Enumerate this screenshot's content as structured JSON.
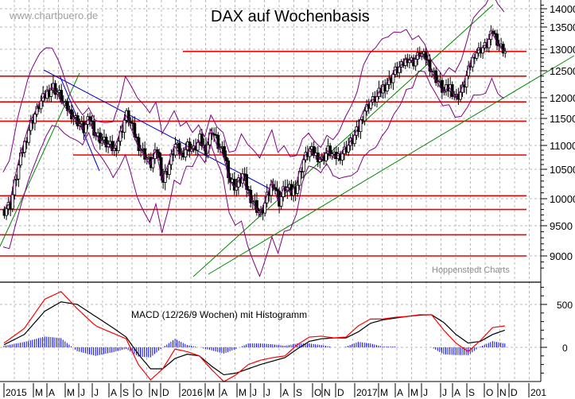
{
  "chart_data": [
    {
      "type": "candlestick",
      "title": "DAX auf Wochenbasis",
      "watermark": "www.chartbuero.de",
      "credit": "Hoppenstedt Charts",
      "xlabel": "",
      "ylabel": "",
      "ylim": [
        8700,
        14000
      ],
      "y_ticks": [
        9000,
        9500,
        10000,
        10500,
        11000,
        11500,
        12000,
        12500,
        13000,
        13500,
        14000
      ],
      "x_ticks": [
        "2015",
        "M",
        "A",
        "M",
        "J",
        "J",
        "A",
        "S",
        "O",
        "N",
        "D",
        "2016",
        "M",
        "A",
        "M",
        "J",
        "J",
        "A",
        "S",
        "O",
        "N",
        "D",
        "2017",
        "M",
        "A",
        "M",
        "J",
        "J",
        "A",
        "S",
        "O",
        "N",
        "D",
        "201"
      ],
      "grid": true,
      "horizontal_support_resistance": [
        12950,
        12400,
        11900,
        11450,
        10800,
        10050,
        9800,
        9350,
        9000
      ],
      "overlays": [
        "Bollinger Bands (purple)",
        "Trend channels (green)",
        "Downtrend lines (blue)"
      ],
      "approx_weekly_close": [
        [
          0,
          9800
        ],
        [
          3,
          9900
        ],
        [
          6,
          10400
        ],
        [
          9,
          10900
        ],
        [
          12,
          11300
        ],
        [
          15,
          11600
        ],
        [
          18,
          11900
        ],
        [
          21,
          12100
        ],
        [
          24,
          12200
        ],
        [
          27,
          12050
        ],
        [
          30,
          11800
        ],
        [
          33,
          11600
        ],
        [
          36,
          11450
        ],
        [
          39,
          11300
        ],
        [
          42,
          11500
        ],
        [
          45,
          11200
        ],
        [
          48,
          11100
        ],
        [
          51,
          11000
        ],
        [
          54,
          10900
        ],
        [
          57,
          11200
        ],
        [
          60,
          11600
        ],
        [
          63,
          11300
        ],
        [
          66,
          11000
        ],
        [
          69,
          10800
        ],
        [
          72,
          10600
        ],
        [
          75,
          10900
        ],
        [
          78,
          10300
        ],
        [
          81,
          10600
        ],
        [
          84,
          11000
        ],
        [
          87,
          10800
        ],
        [
          90,
          11000
        ],
        [
          93,
          10900
        ],
        [
          96,
          11100
        ],
        [
          99,
          10900
        ],
        [
          102,
          11300
        ],
        [
          105,
          11000
        ],
        [
          108,
          10800
        ],
        [
          111,
          10300
        ],
        [
          114,
          10200
        ],
        [
          117,
          10400
        ],
        [
          120,
          10100
        ],
        [
          123,
          9900
        ],
        [
          126,
          9700
        ],
        [
          129,
          10000
        ],
        [
          132,
          10300
        ],
        [
          135,
          9950
        ],
        [
          138,
          10200
        ],
        [
          141,
          10100
        ],
        [
          144,
          10250
        ],
        [
          147,
          10700
        ],
        [
          150,
          10900
        ],
        [
          153,
          10800
        ],
        [
          156,
          10700
        ],
        [
          159,
          10900
        ],
        [
          162,
          10750
        ],
        [
          165,
          10800
        ],
        [
          168,
          10950
        ],
        [
          171,
          11100
        ],
        [
          174,
          11300
        ],
        [
          177,
          11700
        ],
        [
          180,
          11900
        ],
        [
          183,
          12000
        ],
        [
          186,
          12200
        ],
        [
          189,
          12300
        ],
        [
          192,
          12500
        ],
        [
          195,
          12600
        ],
        [
          198,
          12800
        ],
        [
          201,
          12700
        ],
        [
          204,
          12900
        ],
        [
          207,
          12800
        ],
        [
          210,
          12500
        ],
        [
          213,
          12300
        ],
        [
          216,
          12100
        ],
        [
          219,
          12200
        ],
        [
          222,
          12000
        ],
        [
          225,
          12150
        ],
        [
          228,
          12500
        ],
        [
          231,
          12900
        ],
        [
          234,
          13000
        ],
        [
          237,
          13100
        ],
        [
          240,
          13400
        ],
        [
          243,
          13100
        ],
        [
          246,
          12950
        ]
      ]
    },
    {
      "type": "line",
      "title": "MACD (12/26/9 Wochen) mit Histogramm",
      "ylim": [
        -400,
        700
      ],
      "y_ticks": [
        0,
        500
      ],
      "series": [
        {
          "name": "MACD",
          "color": "#ff0000",
          "values": [
            [
              0,
              50
            ],
            [
              10,
              220
            ],
            [
              20,
              560
            ],
            [
              28,
              650
            ],
            [
              36,
              450
            ],
            [
              45,
              250
            ],
            [
              54,
              160
            ],
            [
              60,
              100
            ],
            [
              66,
              -200
            ],
            [
              72,
              -380
            ],
            [
              78,
              -250
            ],
            [
              84,
              -20
            ],
            [
              90,
              -50
            ],
            [
              96,
              -100
            ],
            [
              102,
              -260
            ],
            [
              108,
              -400
            ],
            [
              114,
              -320
            ],
            [
              120,
              -200
            ],
            [
              126,
              -150
            ],
            [
              132,
              -120
            ],
            [
              138,
              -100
            ],
            [
              144,
              30
            ],
            [
              150,
              120
            ],
            [
              156,
              130
            ],
            [
              162,
              110
            ],
            [
              168,
              120
            ],
            [
              174,
              250
            ],
            [
              180,
              330
            ],
            [
              186,
              330
            ],
            [
              192,
              350
            ],
            [
              198,
              360
            ],
            [
              204,
              380
            ],
            [
              210,
              380
            ],
            [
              216,
              200
            ],
            [
              222,
              50
            ],
            [
              228,
              -50
            ],
            [
              234,
              80
            ],
            [
              240,
              230
            ],
            [
              246,
              250
            ]
          ]
        },
        {
          "name": "Signal",
          "color": "#000000",
          "values": [
            [
              0,
              30
            ],
            [
              10,
              150
            ],
            [
              20,
              420
            ],
            [
              28,
              530
            ],
            [
              36,
              500
            ],
            [
              45,
              360
            ],
            [
              54,
              220
            ],
            [
              60,
              120
            ],
            [
              66,
              -80
            ],
            [
              72,
              -250
            ],
            [
              78,
              -250
            ],
            [
              84,
              -130
            ],
            [
              90,
              -80
            ],
            [
              96,
              -100
            ],
            [
              102,
              -220
            ],
            [
              108,
              -320
            ],
            [
              114,
              -300
            ],
            [
              120,
              -250
            ],
            [
              126,
              -200
            ],
            [
              132,
              -160
            ],
            [
              138,
              -120
            ],
            [
              144,
              -20
            ],
            [
              150,
              70
            ],
            [
              156,
              100
            ],
            [
              162,
              110
            ],
            [
              168,
              110
            ],
            [
              174,
              180
            ],
            [
              180,
              280
            ],
            [
              186,
              320
            ],
            [
              192,
              340
            ],
            [
              198,
              360
            ],
            [
              204,
              375
            ],
            [
              210,
              380
            ],
            [
              216,
              290
            ],
            [
              222,
              150
            ],
            [
              228,
              50
            ],
            [
              234,
              70
            ],
            [
              240,
              150
            ],
            [
              246,
              200
            ]
          ]
        },
        {
          "name": "Histogramm",
          "color": "#0000ff",
          "type": "bar"
        }
      ]
    }
  ]
}
